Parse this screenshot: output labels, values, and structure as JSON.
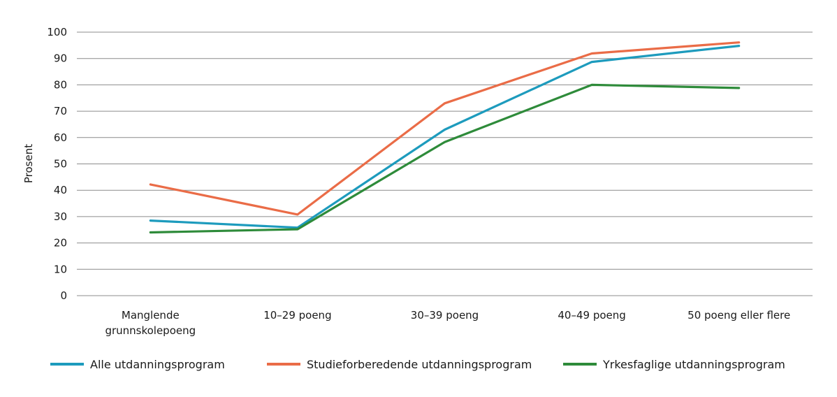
{
  "chart_data": {
    "type": "line",
    "title": "",
    "xlabel": "",
    "ylabel": "Prosent",
    "ylim": [
      0,
      100
    ],
    "yticks": [
      0,
      10,
      20,
      30,
      40,
      50,
      60,
      70,
      80,
      90,
      100
    ],
    "grid": true,
    "legend_position": "bottom",
    "categories": [
      [
        "Manglende",
        "grunnskolepoeng"
      ],
      [
        "10–29 poeng"
      ],
      [
        "30–39 poeng"
      ],
      [
        "40–49 poeng"
      ],
      [
        "50 poeng eller flere"
      ]
    ],
    "series": [
      {
        "name": "Alle utdanningsprogram",
        "color": "#1d9bbd",
        "values": [
          28.5,
          25.8,
          63,
          88.7,
          94.8
        ]
      },
      {
        "name": "Studieforberedende utdanningsprogram",
        "color": "#ea6c47",
        "values": [
          42.2,
          30.8,
          73,
          91.9,
          96.1
        ]
      },
      {
        "name": "Yrkesfaglige utdanningsprogram",
        "color": "#2e8b3a",
        "values": [
          24,
          25.2,
          58.3,
          80,
          78.8
        ]
      }
    ]
  }
}
